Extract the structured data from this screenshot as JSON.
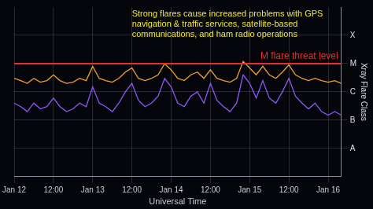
{
  "chart_data": {
    "type": "line",
    "annotations": [
      {
        "text": "Strong flares cause increased problems with GPS navigation & traffic services, satellite-based communications, and ham radio operations",
        "color": "#f2e830"
      }
    ],
    "threshold": {
      "value": 1e-05,
      "label": "M flare threat level",
      "color": "#e8302a"
    },
    "x_label": "Universal Time",
    "y_label": "Xray Flare Class",
    "categories": [
      "Jan 12",
      null,
      null,
      null,
      null,
      null,
      "12:00",
      null,
      null,
      null,
      null,
      null,
      "Jan 13",
      null,
      null,
      null,
      null,
      null,
      "12:00",
      null,
      null,
      null,
      null,
      null,
      "Jan 14",
      null,
      null,
      null,
      null,
      null,
      "12:00",
      null,
      null,
      null,
      null,
      null,
      "Jan 15",
      null,
      null,
      null,
      null,
      null,
      "12:00",
      null,
      null,
      null,
      null,
      null,
      "Jan 16",
      null,
      null
    ],
    "series": [
      {
        "color": "#f0a030",
        "values": [
          3e-06,
          2.5e-06,
          2e-06,
          3e-06,
          2.2e-06,
          2.5e-06,
          4e-06,
          2.5e-06,
          2e-06,
          2.2e-06,
          3e-06,
          2.5e-06,
          8e-06,
          3e-06,
          2.5e-06,
          2.2e-06,
          3e-06,
          5e-06,
          7e-06,
          3e-06,
          2.5e-06,
          3e-06,
          4e-06,
          1e-05,
          6e-06,
          3e-06,
          2.5e-06,
          4e-06,
          5e-06,
          3e-06,
          6e-06,
          3e-06,
          2.5e-06,
          2.2e-06,
          3e-06,
          1.2e-05,
          7e-06,
          4e-06,
          8e-06,
          4e-06,
          3e-06,
          5e-06,
          9e-06,
          4e-06,
          3e-06,
          2.5e-06,
          3e-06,
          2.5e-06,
          2.2e-06,
          2.5e-06,
          2e-06
        ]
      },
      {
        "color": "#9058f8",
        "values": [
          4e-07,
          3e-07,
          2e-07,
          4e-07,
          2.5e-07,
          3e-07,
          6e-07,
          3e-07,
          2e-07,
          2.5e-07,
          4e-07,
          3e-07,
          1.5e-06,
          4e-07,
          3e-07,
          2e-07,
          4e-07,
          1e-06,
          2e-06,
          5e-07,
          3e-07,
          4e-07,
          7e-07,
          3e-06,
          1.5e-06,
          4e-07,
          3e-07,
          7e-07,
          1e-06,
          4e-07,
          2e-06,
          5e-07,
          3e-07,
          2e-07,
          4e-07,
          4e-06,
          2e-06,
          6e-07,
          2.5e-06,
          6e-07,
          4e-07,
          1e-06,
          3e-06,
          7e-07,
          4e-07,
          2.5e-07,
          4e-07,
          2e-07,
          1.5e-07,
          2e-07,
          1.5e-07
        ]
      }
    ],
    "log": "y",
    "ylim": [
      1e-09,
      0.001
    ],
    "yticks": [
      {
        "value": 1e-08,
        "label": "A"
      },
      {
        "value": 1e-07,
        "label": "B"
      },
      {
        "value": 1e-06,
        "label": "C"
      },
      {
        "value": 1e-05,
        "label": "M"
      },
      {
        "value": 0.0001,
        "label": "X"
      }
    ],
    "grid": true
  }
}
